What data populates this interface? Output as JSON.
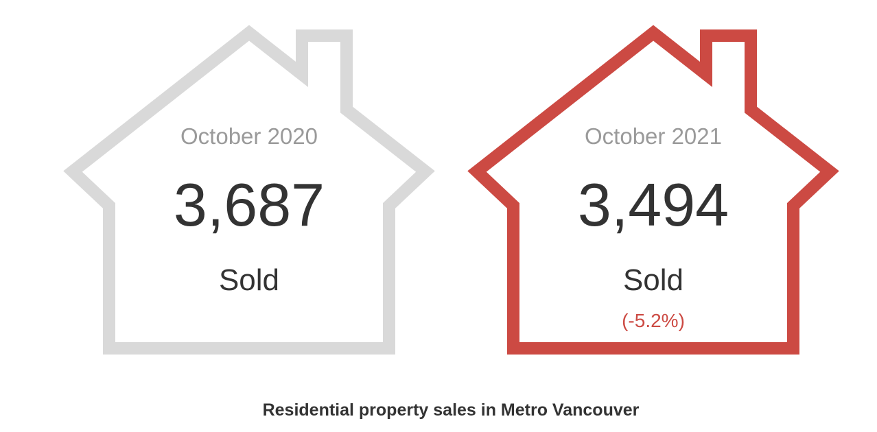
{
  "cards": [
    {
      "period": "October 2020",
      "value": "3,687",
      "label": "Sold"
    },
    {
      "period": "October 2021",
      "value": "3,494",
      "label": "Sold",
      "change": "(-5.2%)"
    }
  ],
  "caption": "Residential property sales in Metro Vancouver"
}
